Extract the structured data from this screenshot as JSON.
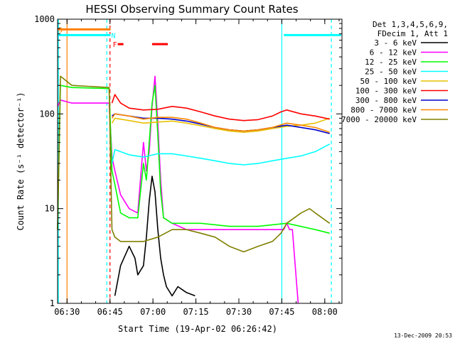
{
  "chart_data": {
    "type": "line",
    "title": "HESSI Observing Summary Count Rates",
    "xlabel": "Start Time (19-Apr-02 06:26:42)",
    "ylabel": "Count Rate (s⁻¹ detector⁻¹)",
    "yscale": "log",
    "ylim": [
      1,
      1000
    ],
    "xlim_minutes": [
      0,
      99.3
    ],
    "x_ticks": [
      {
        "label": "06:30",
        "min": 3.3
      },
      {
        "label": "06:45",
        "min": 18.3
      },
      {
        "label": "07:00",
        "min": 33.3
      },
      {
        "label": "07:15",
        "min": 48.3
      },
      {
        "label": "07:30",
        "min": 63.3
      },
      {
        "label": "07:45",
        "min": 78.3
      },
      {
        "label": "08:00",
        "min": 93.3
      }
    ],
    "y_ticks": [
      {
        "label": "1",
        "v": 1
      },
      {
        "label": "10",
        "v": 10
      },
      {
        "label": "100",
        "v": 100
      },
      {
        "label": "1000",
        "v": 1000
      }
    ],
    "legend_header": [
      "Det 1,3,4,5,6,9,",
      "FDecim 1, Att 1"
    ],
    "legend_position": "right",
    "series": [
      {
        "name": "3 - 6 keV",
        "color": "#000000",
        "x": [
          20,
          22,
          25,
          27,
          28,
          30,
          31,
          32,
          33,
          34,
          35,
          36,
          37,
          38,
          40,
          42,
          45,
          48
        ],
        "y": [
          1.2,
          2.5,
          4,
          3,
          2,
          2.5,
          5,
          12,
          22,
          15,
          6,
          3,
          2,
          1.5,
          1.2,
          1.5,
          1.3,
          1.2
        ]
      },
      {
        "name": "6 - 12 keV",
        "color": "#ff00ff",
        "x": [
          0,
          1,
          5,
          18,
          19,
          20,
          22,
          25,
          28,
          30,
          31,
          32,
          33,
          34,
          35,
          36,
          37,
          40,
          45,
          50,
          60,
          70,
          78,
          79,
          80,
          81,
          82,
          84
        ],
        "y": [
          120,
          140,
          130,
          130,
          35,
          25,
          14,
          10,
          9,
          50,
          25,
          40,
          120,
          250,
          80,
          20,
          8,
          7,
          6,
          6,
          6,
          6,
          6,
          6,
          7,
          6,
          6,
          1
        ]
      },
      {
        "name": "12 - 25 keV",
        "color": "#00ff00",
        "x": [
          0,
          1,
          5,
          18,
          19,
          20,
          22,
          25,
          28,
          30,
          31,
          32,
          33,
          34,
          35,
          36,
          37,
          40,
          45,
          50,
          60,
          70,
          80,
          90,
          95
        ],
        "y": [
          6,
          200,
          190,
          185,
          25,
          18,
          9,
          8,
          8,
          30,
          20,
          50,
          130,
          200,
          60,
          15,
          8,
          7,
          7,
          7,
          6.5,
          6.5,
          7,
          6,
          5.5
        ]
      },
      {
        "name": "25 - 50 keV",
        "color": "#00ffff",
        "x": [
          19,
          20,
          25,
          30,
          35,
          40,
          45,
          50,
          55,
          60,
          65,
          70,
          75,
          80,
          85,
          90,
          95
        ],
        "y": [
          30,
          42,
          37,
          35,
          38,
          38,
          36,
          34,
          32,
          30,
          29,
          30,
          32,
          34,
          36,
          40,
          48
        ]
      },
      {
        "name": "50 - 100 keV",
        "color": "#e8c000",
        "x": [
          19,
          20,
          25,
          30,
          35,
          40,
          45,
          50,
          55,
          60,
          65,
          70,
          75,
          80,
          85,
          90,
          95
        ],
        "y": [
          80,
          90,
          85,
          80,
          82,
          84,
          80,
          75,
          70,
          66,
          64,
          66,
          70,
          74,
          76,
          80,
          90
        ]
      },
      {
        "name": "100 - 300 keV",
        "color": "#ff0000",
        "x": [
          19,
          20,
          22,
          25,
          30,
          35,
          40,
          45,
          50,
          55,
          60,
          65,
          70,
          75,
          78,
          80,
          85,
          90,
          95
        ],
        "y": [
          130,
          160,
          130,
          115,
          110,
          112,
          120,
          115,
          105,
          95,
          88,
          85,
          87,
          95,
          105,
          110,
          100,
          95,
          88
        ]
      },
      {
        "name": "300 - 800 keV",
        "color": "#0000cc",
        "x": [
          19,
          20,
          25,
          30,
          35,
          40,
          45,
          50,
          55,
          60,
          65,
          70,
          75,
          80,
          85,
          90,
          95
        ],
        "y": [
          95,
          100,
          95,
          90,
          90,
          88,
          84,
          78,
          72,
          68,
          66,
          68,
          72,
          76,
          72,
          68,
          62
        ]
      },
      {
        "name": "800 - 7000 keV",
        "color": "#ff8800",
        "x": [
          19,
          20,
          25,
          30,
          35,
          40,
          45,
          50,
          55,
          60,
          65,
          70,
          75,
          80,
          85,
          90,
          95
        ],
        "y": [
          90,
          100,
          95,
          88,
          92,
          92,
          88,
          80,
          72,
          68,
          66,
          68,
          72,
          80,
          76,
          72,
          64
        ]
      },
      {
        "name": "7000 - 20000 keV",
        "color": "#808000",
        "x": [
          0,
          1,
          5,
          18,
          19,
          20,
          22,
          25,
          30,
          35,
          40,
          45,
          50,
          55,
          60,
          65,
          70,
          75,
          78,
          80,
          85,
          88,
          90,
          95
        ],
        "y": [
          6,
          250,
          200,
          190,
          6,
          5,
          4.5,
          4.5,
          4.5,
          5,
          6,
          6,
          5.5,
          5,
          4,
          3.5,
          4,
          4.5,
          5.5,
          7,
          9,
          10,
          9,
          7
        ]
      }
    ],
    "flag_bars": [
      {
        "label": "S",
        "color": "#ff8000",
        "x": [
          0,
          18.5
        ],
        "y": 780
      },
      {
        "label": "N",
        "color": "#00ffff",
        "x": [
          0,
          18.5
        ],
        "y": 680
      },
      {
        "label": "",
        "color": "#00ffff",
        "x": [
          79,
          99
        ],
        "y": 680
      },
      {
        "label": "F",
        "color": "#ff0000",
        "x": [
          21,
          23
        ],
        "y": 545
      },
      {
        "label": "",
        "color": "#ff0000",
        "x": [
          33,
          38.5
        ],
        "y": 545
      }
    ],
    "vlines": [
      {
        "min": 0.3,
        "color": "#00ffff",
        "dash": false
      },
      {
        "min": 3.3,
        "color": "#ff8000",
        "dash": false
      },
      {
        "min": 17.2,
        "color": "#00ffff",
        "dash": true
      },
      {
        "min": 18.3,
        "color": "#ff0000",
        "dash": true
      },
      {
        "min": 78.3,
        "color": "#00ffff",
        "dash": false
      },
      {
        "min": 95.6,
        "color": "#00ffff",
        "dash": true
      }
    ],
    "grid": false
  },
  "footer": {
    "date": "13-Dec-2009 20:53"
  }
}
